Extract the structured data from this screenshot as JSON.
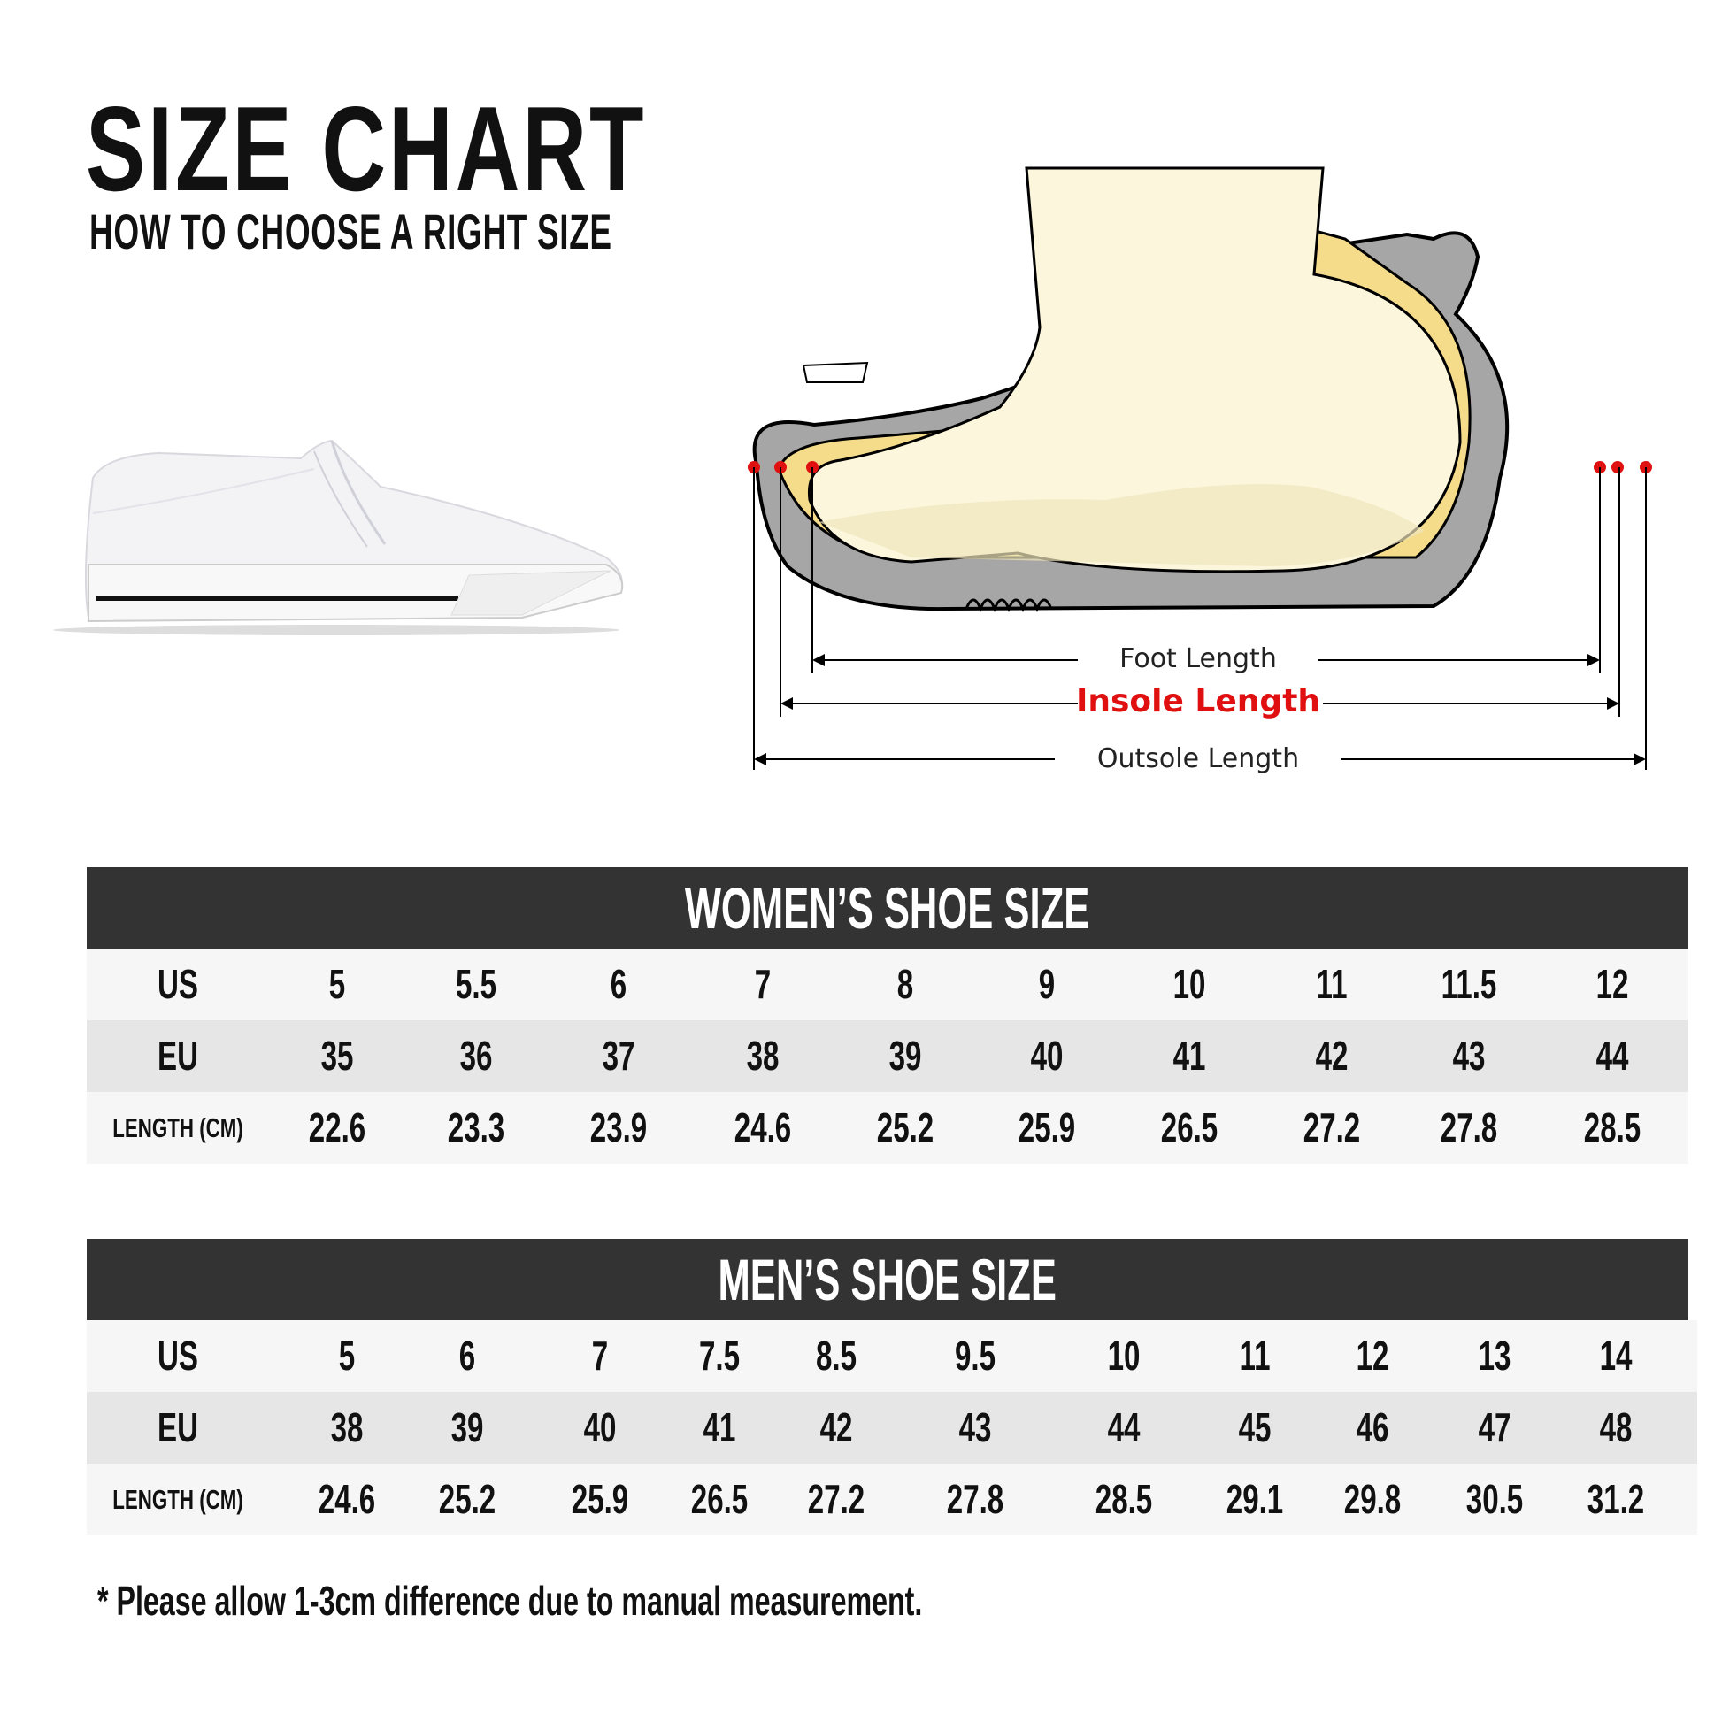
{
  "header": {
    "title": "SIZE CHART",
    "subtitle": "HOW TO CHOOSE A RIGHT SIZE"
  },
  "diagram": {
    "foot_length": "Foot Length",
    "insole_length": "Insole Length",
    "outsole_length": "Outsole Length",
    "highlight_color": "#e01010"
  },
  "women": {
    "title": "WOMEN’S SHOE SIZE",
    "rows": [
      {
        "label": "US",
        "values": [
          "5",
          "5.5",
          "6",
          "7",
          "8",
          "9",
          "10",
          "11",
          "11.5",
          "12"
        ]
      },
      {
        "label": "EU",
        "values": [
          "35",
          "36",
          "37",
          "38",
          "39",
          "40",
          "41",
          "42",
          "43",
          "44"
        ]
      },
      {
        "label": "LENGTH (CM)",
        "values": [
          "22.6",
          "23.3",
          "23.9",
          "24.6",
          "25.2",
          "25.9",
          "26.5",
          "27.2",
          "27.8",
          "28.5"
        ]
      }
    ]
  },
  "men": {
    "title": "MEN’S SHOE SIZE",
    "rows": [
      {
        "label": "US",
        "values": [
          "5",
          "6",
          "7",
          "7.5",
          "8.5",
          "9.5",
          "10",
          "11",
          "12",
          "13",
          "14"
        ]
      },
      {
        "label": "EU",
        "values": [
          "38",
          "39",
          "40",
          "41",
          "42",
          "43",
          "44",
          "45",
          "46",
          "47",
          "48"
        ]
      },
      {
        "label": "LENGTH (CM)",
        "values": [
          "24.6",
          "25.2",
          "25.9",
          "26.5",
          "27.2",
          "27.8",
          "28.5",
          "29.1",
          "29.8",
          "30.5",
          "31.2"
        ]
      }
    ]
  },
  "footnote": "* Please allow 1-3cm difference due to manual measurement."
}
